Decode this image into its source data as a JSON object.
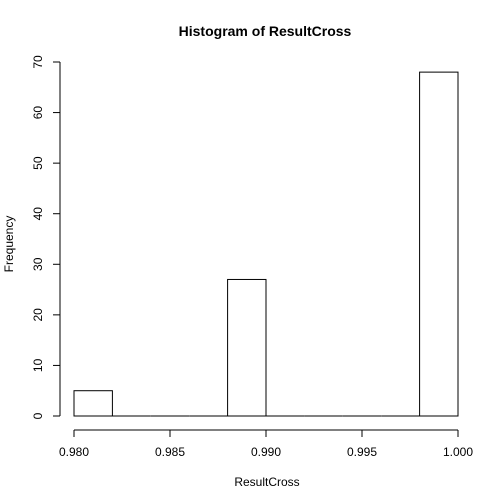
{
  "chart_data": {
    "type": "bar",
    "title": "Histogram of ResultCross",
    "xlabel": "ResultCross",
    "ylabel": "Frequency",
    "bins": [
      {
        "x0": 0.98,
        "x1": 0.982,
        "count": 5
      },
      {
        "x0": 0.982,
        "x1": 0.984,
        "count": 0
      },
      {
        "x0": 0.984,
        "x1": 0.986,
        "count": 0
      },
      {
        "x0": 0.986,
        "x1": 0.988,
        "count": 0
      },
      {
        "x0": 0.988,
        "x1": 0.99,
        "count": 27
      },
      {
        "x0": 0.99,
        "x1": 0.992,
        "count": 0
      },
      {
        "x0": 0.992,
        "x1": 0.994,
        "count": 0
      },
      {
        "x0": 0.994,
        "x1": 0.996,
        "count": 0
      },
      {
        "x0": 0.996,
        "x1": 0.998,
        "count": 0
      },
      {
        "x0": 0.998,
        "x1": 1.0,
        "count": 68
      }
    ],
    "xlim": [
      0.98,
      1.0
    ],
    "ylim": [
      0,
      70
    ],
    "xticks": [
      0.98,
      0.985,
      0.99,
      0.995,
      1.0
    ],
    "xtick_labels": [
      "0.980",
      "0.985",
      "0.990",
      "0.995",
      "1.000"
    ],
    "yticks": [
      0,
      10,
      20,
      30,
      40,
      50,
      60,
      70
    ],
    "ytick_labels": [
      "0",
      "10",
      "20",
      "30",
      "40",
      "50",
      "60",
      "70"
    ],
    "grid": false,
    "legend": false
  }
}
